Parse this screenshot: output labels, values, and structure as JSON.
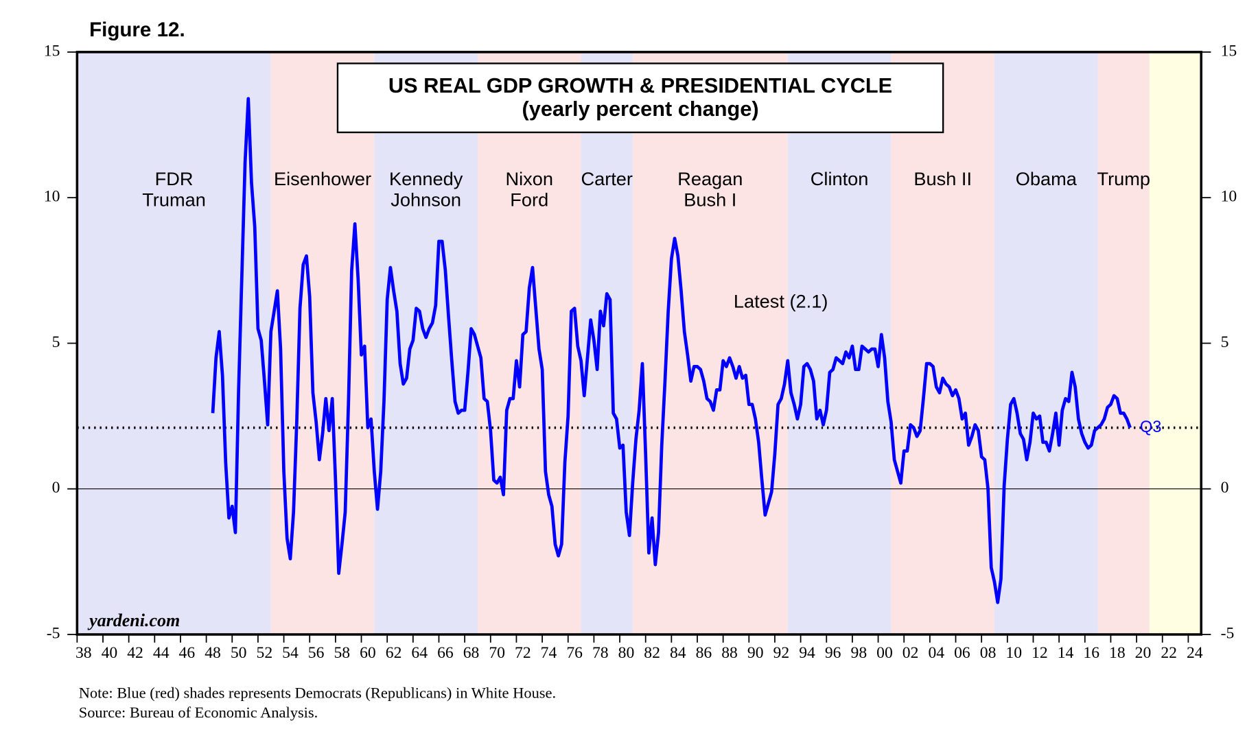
{
  "figure_label": "Figure 12.",
  "notes": [
    "Note: Blue (red) shades represents Democrats (Republicans) in White House.",
    "Source: Bureau of Economic Analysis."
  ],
  "chart_data": {
    "type": "line",
    "title": "US REAL GDP GROWTH & PRESIDENTIAL CYCLE",
    "subtitle": "(yearly percent change)",
    "annotation": "Latest (2.1)",
    "end_label": "Q3",
    "watermark": "yardeni.com",
    "color": "#0000ff",
    "xlim": [
      1938,
      2025
    ],
    "ylim": [
      -5,
      15
    ],
    "yticks": [
      -5,
      0,
      5,
      10,
      15
    ],
    "y2lim": [
      -5,
      15
    ],
    "y2ticks": [
      -5,
      0,
      5,
      10,
      15
    ],
    "zero_line": true,
    "reference_line": 2.1,
    "xticks": [
      {
        "value": 1938,
        "label": "38"
      },
      {
        "value": 1940,
        "label": "40"
      },
      {
        "value": 1942,
        "label": "42"
      },
      {
        "value": 1944,
        "label": "44"
      },
      {
        "value": 1946,
        "label": "46"
      },
      {
        "value": 1948,
        "label": "48"
      },
      {
        "value": 1950,
        "label": "50"
      },
      {
        "value": 1952,
        "label": "52"
      },
      {
        "value": 1954,
        "label": "54"
      },
      {
        "value": 1956,
        "label": "56"
      },
      {
        "value": 1958,
        "label": "58"
      },
      {
        "value": 1960,
        "label": "60"
      },
      {
        "value": 1962,
        "label": "62"
      },
      {
        "value": 1964,
        "label": "64"
      },
      {
        "value": 1966,
        "label": "66"
      },
      {
        "value": 1968,
        "label": "68"
      },
      {
        "value": 1970,
        "label": "70"
      },
      {
        "value": 1972,
        "label": "72"
      },
      {
        "value": 1974,
        "label": "74"
      },
      {
        "value": 1976,
        "label": "76"
      },
      {
        "value": 1978,
        "label": "78"
      },
      {
        "value": 1980,
        "label": "80"
      },
      {
        "value": 1982,
        "label": "82"
      },
      {
        "value": 1984,
        "label": "84"
      },
      {
        "value": 1986,
        "label": "86"
      },
      {
        "value": 1988,
        "label": "88"
      },
      {
        "value": 1990,
        "label": "90"
      },
      {
        "value": 1992,
        "label": "92"
      },
      {
        "value": 1994,
        "label": "94"
      },
      {
        "value": 1996,
        "label": "96"
      },
      {
        "value": 1998,
        "label": "98"
      },
      {
        "value": 2000,
        "label": "00"
      },
      {
        "value": 2002,
        "label": "02"
      },
      {
        "value": 2004,
        "label": "04"
      },
      {
        "value": 2006,
        "label": "06"
      },
      {
        "value": 2008,
        "label": "08"
      },
      {
        "value": 2010,
        "label": "10"
      },
      {
        "value": 2012,
        "label": "12"
      },
      {
        "value": 2014,
        "label": "14"
      },
      {
        "value": 2016,
        "label": "16"
      },
      {
        "value": 2018,
        "label": "18"
      },
      {
        "value": 2020,
        "label": "20"
      },
      {
        "value": 2022,
        "label": "22"
      },
      {
        "value": 2024,
        "label": "24"
      }
    ],
    "regions": [
      {
        "start": 1938,
        "end": 1953,
        "color": "#e4e4f9",
        "label": [
          "FDR",
          "Truman"
        ]
      },
      {
        "start": 1953,
        "end": 1961,
        "color": "#fde4e4",
        "label": [
          "Eisenhower"
        ]
      },
      {
        "start": 1961,
        "end": 1969,
        "color": "#e4e4f9",
        "label": [
          "Kennedy",
          "Johnson"
        ]
      },
      {
        "start": 1969,
        "end": 1977,
        "color": "#fde4e4",
        "label": [
          "Nixon",
          "Ford"
        ]
      },
      {
        "start": 1977,
        "end": 1981,
        "color": "#e4e4f9",
        "label": [
          "Carter"
        ]
      },
      {
        "start": 1981,
        "end": 1993,
        "color": "#fde4e4",
        "label": [
          "Reagan",
          "Bush I"
        ]
      },
      {
        "start": 1993,
        "end": 2001,
        "color": "#e4e4f9",
        "label": [
          "Clinton"
        ]
      },
      {
        "start": 2001,
        "end": 2009,
        "color": "#fde4e4",
        "label": [
          "Bush II"
        ]
      },
      {
        "start": 2009,
        "end": 2017,
        "color": "#e4e4f9",
        "label": [
          "Obama"
        ]
      },
      {
        "start": 2017,
        "end": 2021,
        "color": "#fde4e4",
        "label": [
          "Trump"
        ]
      },
      {
        "start": 2021,
        "end": 2025,
        "color": "#fffde2"
      }
    ],
    "x": [
      1948.5,
      1948.75,
      1949,
      1949.25,
      1949.5,
      1949.75,
      1950,
      1950.25,
      1950.5,
      1950.75,
      1951,
      1951.25,
      1951.5,
      1951.75,
      1952,
      1952.25,
      1952.5,
      1952.75,
      1953,
      1953.25,
      1953.5,
      1953.75,
      1954,
      1954.25,
      1954.5,
      1954.75,
      1955,
      1955.25,
      1955.5,
      1955.75,
      1956,
      1956.25,
      1956.5,
      1956.75,
      1957,
      1957.25,
      1957.5,
      1957.75,
      1958,
      1958.25,
      1958.5,
      1958.75,
      1959,
      1959.25,
      1959.5,
      1959.75,
      1960,
      1960.25,
      1960.5,
      1960.75,
      1961,
      1961.25,
      1961.5,
      1961.75,
      1962,
      1962.25,
      1962.5,
      1962.75,
      1963,
      1963.25,
      1963.5,
      1963.75,
      1964,
      1964.25,
      1964.5,
      1964.75,
      1965,
      1965.25,
      1965.5,
      1965.75,
      1966,
      1966.25,
      1966.5,
      1966.75,
      1967,
      1967.25,
      1967.5,
      1967.75,
      1968,
      1968.25,
      1968.5,
      1968.75,
      1969,
      1969.25,
      1969.5,
      1969.75,
      1970,
      1970.25,
      1970.5,
      1970.75,
      1971,
      1971.25,
      1971.5,
      1971.75,
      1972,
      1972.25,
      1972.5,
      1972.75,
      1973,
      1973.25,
      1973.5,
      1973.75,
      1974,
      1974.25,
      1974.5,
      1974.75,
      1975,
      1975.25,
      1975.5,
      1975.75,
      1976,
      1976.25,
      1976.5,
      1976.75,
      1977,
      1977.25,
      1977.5,
      1977.75,
      1978,
      1978.25,
      1978.5,
      1978.75,
      1979,
      1979.25,
      1979.5,
      1979.75,
      1980,
      1980.25,
      1980.5,
      1980.75,
      1981,
      1981.25,
      1981.5,
      1981.75,
      1982,
      1982.25,
      1982.5,
      1982.75,
      1983,
      1983.25,
      1983.5,
      1983.75,
      1984,
      1984.25,
      1984.5,
      1984.75,
      1985,
      1985.25,
      1985.5,
      1985.75,
      1986,
      1986.25,
      1986.5,
      1986.75,
      1987,
      1987.25,
      1987.5,
      1987.75,
      1988,
      1988.25,
      1988.5,
      1988.75,
      1989,
      1989.25,
      1989.5,
      1989.75,
      1990,
      1990.25,
      1990.5,
      1990.75,
      1991,
      1991.25,
      1991.5,
      1991.75,
      1992,
      1992.25,
      1992.5,
      1992.75,
      1993,
      1993.25,
      1993.5,
      1993.75,
      1994,
      1994.25,
      1994.5,
      1994.75,
      1995,
      1995.25,
      1995.5,
      1995.75,
      1996,
      1996.25,
      1996.5,
      1996.75,
      1997,
      1997.25,
      1997.5,
      1997.75,
      1998,
      1998.25,
      1998.5,
      1998.75,
      1999,
      1999.25,
      1999.5,
      1999.75,
      2000,
      2000.25,
      2000.5,
      2000.75,
      2001,
      2001.25,
      2001.5,
      2001.75,
      2002,
      2002.25,
      2002.5,
      2002.75,
      2003,
      2003.25,
      2003.5,
      2003.75,
      2004,
      2004.25,
      2004.5,
      2004.75,
      2005,
      2005.25,
      2005.5,
      2005.75,
      2006,
      2006.25,
      2006.5,
      2006.75,
      2007,
      2007.25,
      2007.5,
      2007.75,
      2008,
      2008.25,
      2008.5,
      2008.75,
      2009,
      2009.25,
      2009.5,
      2009.75,
      2010,
      2010.25,
      2010.5,
      2010.75,
      2011,
      2011.25,
      2011.5,
      2011.75,
      2012,
      2012.25,
      2012.5,
      2012.75,
      2013,
      2013.25,
      2013.5,
      2013.75,
      2014,
      2014.25,
      2014.5,
      2014.75,
      2015,
      2015.25,
      2015.5,
      2015.75,
      2016,
      2016.25,
      2016.5,
      2016.75,
      2017,
      2017.25,
      2017.5,
      2017.75,
      2018,
      2018.25,
      2018.5,
      2018.75,
      2019,
      2019.25,
      2019.5
    ],
    "values": [
      2.6,
      4.5,
      5.4,
      3.9,
      0.9,
      -1.0,
      -0.6,
      -1.5,
      3.4,
      7.3,
      11.2,
      13.4,
      10.5,
      9.0,
      5.5,
      5.1,
      3.7,
      2.2,
      5.4,
      6.1,
      6.8,
      4.8,
      0.6,
      -1.7,
      -2.4,
      -0.8,
      2.3,
      6.2,
      7.7,
      8.0,
      6.6,
      3.3,
      2.3,
      1.0,
      1.9,
      3.1,
      2.0,
      3.1,
      0.3,
      -2.9,
      -1.9,
      -0.8,
      2.9,
      7.5,
      9.1,
      7.2,
      4.6,
      4.9,
      2.1,
      2.4,
      0.6,
      -0.7,
      0.6,
      3.0,
      6.5,
      7.6,
      6.8,
      6.1,
      4.3,
      3.6,
      3.8,
      4.8,
      5.1,
      6.2,
      6.1,
      5.5,
      5.2,
      5.5,
      5.7,
      6.3,
      8.5,
      8.5,
      7.5,
      5.9,
      4.4,
      3.0,
      2.6,
      2.7,
      2.7,
      4.0,
      5.5,
      5.3,
      4.9,
      4.5,
      3.1,
      3.0,
      2.0,
      0.3,
      0.2,
      0.4,
      -0.2,
      2.7,
      3.1,
      3.1,
      4.4,
      3.5,
      5.3,
      5.4,
      6.9,
      7.6,
      6.2,
      4.8,
      4.1,
      0.6,
      -0.2,
      -0.6,
      -1.9,
      -2.3,
      -1.9,
      0.9,
      2.5,
      6.1,
      6.2,
      4.9,
      4.4,
      3.2,
      4.5,
      5.8,
      5.1,
      4.1,
      6.1,
      5.6,
      6.7,
      6.5,
      2.6,
      2.4,
      1.4,
      1.5,
      -0.8,
      -1.6,
      0.2,
      1.7,
      2.7,
      4.3,
      1.2,
      -2.2,
      -1.0,
      -2.6,
      -1.5,
      1.5,
      3.7,
      6.1,
      7.9,
      8.6,
      8.0,
      6.8,
      5.4,
      4.6,
      3.7,
      4.2,
      4.2,
      4.1,
      3.7,
      3.1,
      3.0,
      2.7,
      3.4,
      3.4,
      4.4,
      4.2,
      4.5,
      4.2,
      3.8,
      4.2,
      3.8,
      3.9,
      2.9,
      2.9,
      2.4,
      1.6,
      0.3,
      -0.9,
      -0.5,
      -0.1,
      1.2,
      2.9,
      3.1,
      3.6,
      4.4,
      3.3,
      2.9,
      2.4,
      2.9,
      4.2,
      4.3,
      4.1,
      3.7,
      2.4,
      2.7,
      2.2,
      2.7,
      4.0,
      4.1,
      4.5,
      4.4,
      4.3,
      4.7,
      4.5,
      4.9,
      4.1,
      4.1,
      4.9,
      4.8,
      4.7,
      4.8,
      4.8,
      4.2,
      5.3,
      4.5,
      3.0,
      2.3,
      1.0,
      0.6,
      0.2,
      1.3,
      1.3,
      2.2,
      2.1,
      1.8,
      2.0,
      3.1,
      4.3,
      4.3,
      4.2,
      3.5,
      3.3,
      3.8,
      3.6,
      3.5,
      3.2,
      3.4,
      3.1,
      2.4,
      2.6,
      1.5,
      1.8,
      2.2,
      2.0,
      1.1,
      1.0,
      0.0,
      -2.7,
      -3.2,
      -3.9,
      -3.1,
      0.1,
      1.7,
      2.9,
      3.1,
      2.6,
      1.9,
      1.7,
      1.0,
      1.6,
      2.6,
      2.4,
      2.5,
      1.6,
      1.6,
      1.3,
      1.9,
      2.6,
      1.5,
      2.7,
      3.1,
      3.0,
      4.0,
      3.5,
      2.4,
      1.9,
      1.6,
      1.4,
      1.5,
      2.0,
      2.1,
      2.2,
      2.4,
      2.8,
      2.9,
      3.2,
      3.1,
      2.6,
      2.6,
      2.4,
      2.1
    ]
  }
}
